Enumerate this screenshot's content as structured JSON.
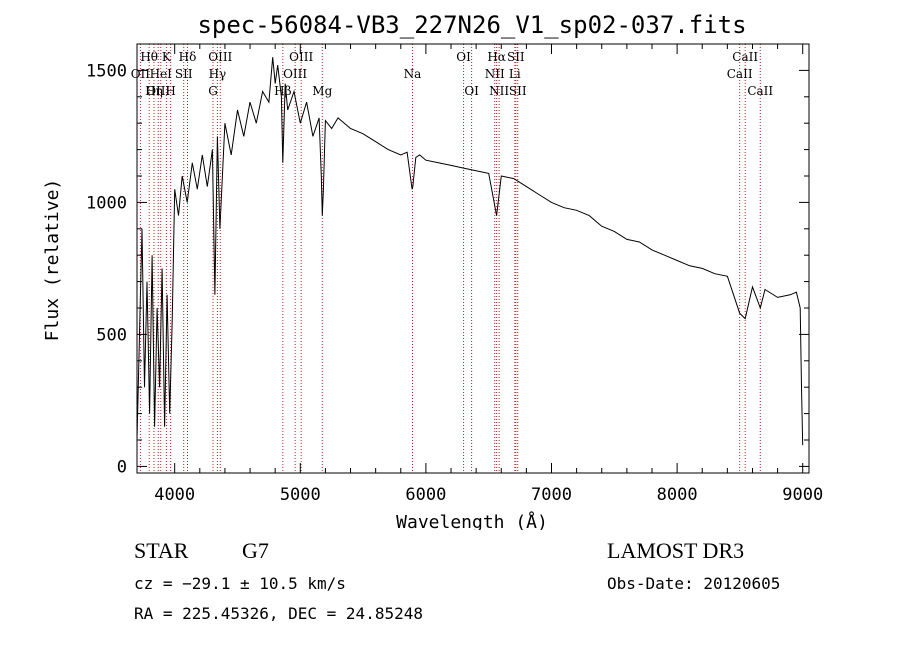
{
  "chart_data": {
    "type": "line",
    "title": "spec-56084-VB3_227N26_V1_sp02-037.fits",
    "xlabel": "Wavelength (Å)",
    "ylabel": "Flux (relative)",
    "xlim": [
      3700,
      9050
    ],
    "ylim": [
      -25,
      1600
    ],
    "xticks": [
      4000,
      5000,
      6000,
      7000,
      8000,
      9000
    ],
    "yticks": [
      0,
      500,
      1000,
      1500
    ],
    "grid": false,
    "series": [
      {
        "name": "flux",
        "x": [
          3700,
          3720,
          3740,
          3760,
          3780,
          3800,
          3820,
          3840,
          3860,
          3880,
          3900,
          3920,
          3940,
          3960,
          3980,
          4000,
          4030,
          4060,
          4100,
          4140,
          4180,
          4220,
          4260,
          4300,
          4320,
          4340,
          4360,
          4400,
          4450,
          4500,
          4550,
          4600,
          4650,
          4700,
          4750,
          4780,
          4800,
          4820,
          4850,
          4861,
          4880,
          4900,
          4950,
          5000,
          5050,
          5100,
          5150,
          5167,
          5175,
          5184,
          5200,
          5250,
          5300,
          5400,
          5500,
          5600,
          5700,
          5800,
          5850,
          5890,
          5896,
          5920,
          5950,
          6000,
          6100,
          6200,
          6300,
          6400,
          6500,
          6563,
          6600,
          6700,
          6800,
          6900,
          7000,
          7100,
          7200,
          7300,
          7400,
          7500,
          7600,
          7700,
          7800,
          7900,
          8000,
          8100,
          8200,
          8300,
          8400,
          8498,
          8542,
          8600,
          8662,
          8700,
          8800,
          8900,
          8950,
          8980,
          8990,
          9000
        ],
        "y": [
          100,
          500,
          900,
          300,
          700,
          200,
          800,
          150,
          600,
          300,
          750,
          150,
          650,
          200,
          550,
          1050,
          950,
          1100,
          1000,
          1150,
          1050,
          1180,
          1060,
          1200,
          650,
          1250,
          900,
          1300,
          1180,
          1350,
          1250,
          1380,
          1300,
          1420,
          1380,
          1550,
          1450,
          1520,
          1400,
          1150,
          1450,
          1350,
          1420,
          1300,
          1380,
          1250,
          1320,
          1100,
          950,
          1050,
          1310,
          1280,
          1320,
          1280,
          1260,
          1230,
          1200,
          1180,
          1190,
          1050,
          1060,
          1170,
          1180,
          1160,
          1150,
          1140,
          1130,
          1120,
          1110,
          950,
          1100,
          1090,
          1060,
          1030,
          1000,
          980,
          970,
          950,
          910,
          890,
          860,
          850,
          820,
          800,
          780,
          760,
          750,
          730,
          720,
          580,
          560,
          680,
          600,
          670,
          640,
          650,
          660,
          600,
          300,
          80
        ]
      }
    ],
    "lines": [
      {
        "label": "Hθ",
        "wavelength": 3797,
        "row": 1
      },
      {
        "label": "OII",
        "wavelength": 3727,
        "row": 2
      },
      {
        "label": "OIII",
        "wavelength": 3869,
        "row": 3
      },
      {
        "label": "HeI",
        "wavelength": 3889,
        "row": 2
      },
      {
        "label": "Hη",
        "wavelength": 3835,
        "row": 3
      },
      {
        "label": "K",
        "wavelength": 3934,
        "row": 1
      },
      {
        "label": "H",
        "wavelength": 3968,
        "row": 3
      },
      {
        "label": "SII",
        "wavelength": 4072,
        "row": 2
      },
      {
        "label": "Hδ",
        "wavelength": 4102,
        "row": 1
      },
      {
        "label": "OIII",
        "wavelength": 4363,
        "row": 1
      },
      {
        "label": "Hγ",
        "wavelength": 4340,
        "row": 2
      },
      {
        "label": "G",
        "wavelength": 4305,
        "row": 3
      },
      {
        "label": "OIII",
        "wavelength": 5007,
        "row": 1
      },
      {
        "label": "OIII",
        "wavelength": 4959,
        "row": 2
      },
      {
        "label": "Hβ",
        "wavelength": 4861,
        "row": 3
      },
      {
        "label": "Mg",
        "wavelength": 5175,
        "row": 3
      },
      {
        "label": "Na",
        "wavelength": 5893,
        "row": 2
      },
      {
        "label": "OI",
        "wavelength": 6300,
        "row": 1
      },
      {
        "label": "OI",
        "wavelength": 6364,
        "row": 3
      },
      {
        "label": "Hα",
        "wavelength": 6563,
        "row": 1
      },
      {
        "label": "NII",
        "wavelength": 6548,
        "row": 2
      },
      {
        "label": "NII",
        "wavelength": 6583,
        "row": 3
      },
      {
        "label": "SII",
        "wavelength": 6716,
        "row": 1
      },
      {
        "label": "Li",
        "wavelength": 6708,
        "row": 2
      },
      {
        "label": "SII",
        "wavelength": 6731,
        "row": 3
      },
      {
        "label": "CaII",
        "wavelength": 8498,
        "row": 2
      },
      {
        "label": "CaII",
        "wavelength": 8542,
        "row": 1
      },
      {
        "label": "CaII",
        "wavelength": 8662,
        "row": 3
      }
    ]
  },
  "info": {
    "class_label": "STAR",
    "subclass": "G7",
    "cz": "cz = −29.1 ± 10.5 km/s",
    "radec": "RA = 225.45326, DEC =  24.85248",
    "survey": "LAMOST DR3",
    "obs_date": "Obs-Date: 20120605"
  },
  "colors": {
    "line_marker": "#b22222",
    "spectrum": "#000000",
    "axes": "#000000"
  }
}
